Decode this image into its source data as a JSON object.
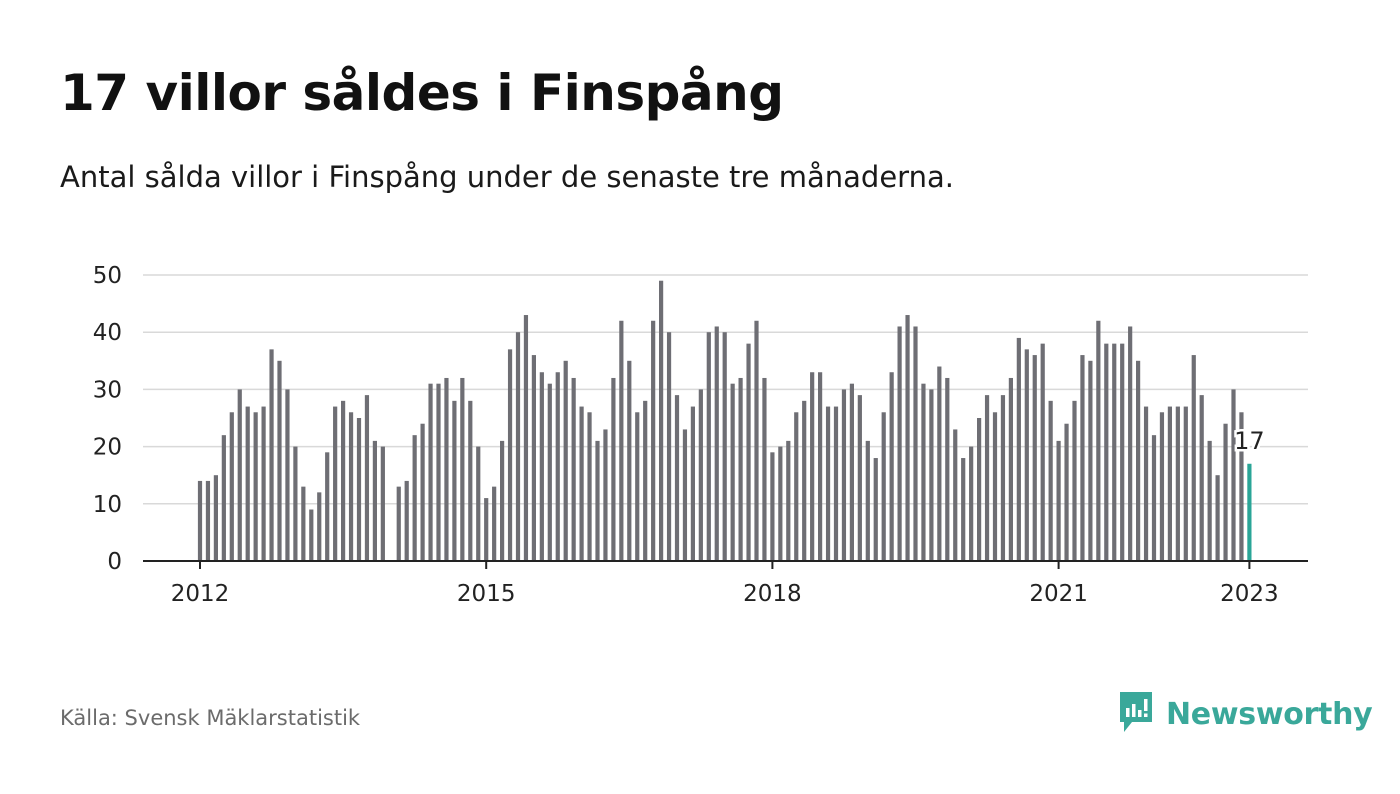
{
  "title": "17 villor såldes i Finspång",
  "subtitle": "Antal sålda villor i Finspång under de senaste tre månaderna.",
  "source": "Källa: Svensk Mäklarstatistik",
  "brand": {
    "name": "Newsworthy",
    "icon": "newsworthy-logo-icon",
    "color": "#3aa89a"
  },
  "colors": {
    "bar": "#6e6e74",
    "highlight": "#2aa597",
    "grid": "#d9d9d9",
    "axis": "#222222"
  },
  "chart_data": {
    "type": "bar",
    "title": "17 villor såldes i Finspång",
    "xlabel": "",
    "ylabel": "",
    "ylim": [
      0,
      50
    ],
    "yticks": [
      0,
      10,
      20,
      30,
      40,
      50
    ],
    "xticks": [
      {
        "label": "2012",
        "date": "2012-01"
      },
      {
        "label": "2015",
        "date": "2015-01"
      },
      {
        "label": "2018",
        "date": "2018-01"
      },
      {
        "label": "2021",
        "date": "2021-01"
      },
      {
        "label": "2023",
        "date": "2023-01"
      }
    ],
    "grid": true,
    "period_start": "2012-01",
    "period_end": "2023-01",
    "highlight": {
      "date": "2023-01",
      "label": "17"
    },
    "series": [
      {
        "values": [
          14,
          14,
          15,
          22,
          26,
          30,
          27,
          26,
          27,
          37,
          35,
          30,
          20,
          13,
          9,
          12,
          19,
          27,
          28,
          26,
          25,
          29,
          21,
          20,
          null,
          13,
          14,
          22,
          24,
          31,
          31,
          32,
          28,
          32,
          28,
          20,
          11,
          13,
          21,
          37,
          40,
          43,
          36,
          33,
          31,
          33,
          35,
          32,
          27,
          26,
          21,
          23,
          32,
          42,
          35,
          26,
          28,
          42,
          49,
          40,
          29,
          23,
          27,
          30,
          40,
          41,
          40,
          31,
          32,
          38,
          42,
          32,
          19,
          20,
          21,
          26,
          28,
          33,
          33,
          27,
          27,
          30,
          31,
          29,
          21,
          18,
          26,
          33,
          41,
          43,
          41,
          31,
          30,
          34,
          32,
          23,
          18,
          20,
          25,
          29,
          26,
          29,
          32,
          39,
          37,
          36,
          38,
          28,
          21,
          24,
          28,
          36,
          35,
          42,
          38,
          38,
          38,
          41,
          35,
          27,
          22,
          26,
          27,
          27,
          27,
          36,
          29,
          21,
          15,
          24,
          30,
          26,
          17
        ]
      }
    ]
  }
}
